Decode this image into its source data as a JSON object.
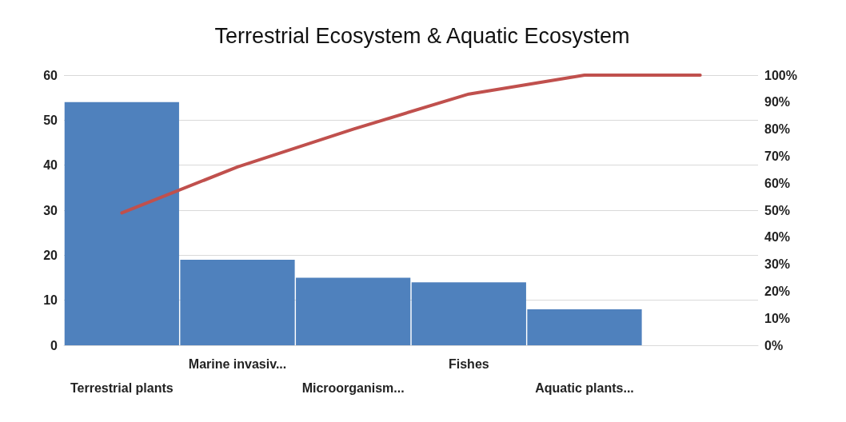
{
  "chart_data": {
    "type": "bar",
    "title": "Terrestrial Ecosystem & Aquatic Ecosystem",
    "categories": [
      "Terrestrial plants",
      "Marine invasiv...",
      "Microorganism...",
      "Fishes",
      "Aquatic plants...",
      null
    ],
    "series": [
      {
        "color": "#4f81bd",
        "values": [
          54,
          19,
          15,
          14,
          8,
          null
        ]
      },
      {
        "type": "line",
        "axis": "y2",
        "color": "#c0504d",
        "values": [
          49,
          66,
          80,
          93,
          100,
          100
        ]
      }
    ],
    "ylim": [
      0,
      60
    ],
    "yticks": [
      0,
      10,
      20,
      30,
      40,
      50,
      60
    ],
    "y2lim": [
      0,
      100
    ],
    "y2ticks": [
      {
        "value": 0,
        "label": "0%"
      },
      {
        "value": 10,
        "label": "10%"
      },
      {
        "value": 20,
        "label": "20%"
      },
      {
        "value": 30,
        "label": "30%"
      },
      {
        "value": 40,
        "label": "40%"
      },
      {
        "value": 50,
        "label": "50%"
      },
      {
        "value": 60,
        "label": "60%"
      },
      {
        "value": 70,
        "label": "70%"
      },
      {
        "value": 80,
        "label": "80%"
      },
      {
        "value": 90,
        "label": "90%"
      },
      {
        "value": 100,
        "label": "100%"
      }
    ],
    "grid": "y",
    "marker": "none",
    "line_style": "solid"
  }
}
